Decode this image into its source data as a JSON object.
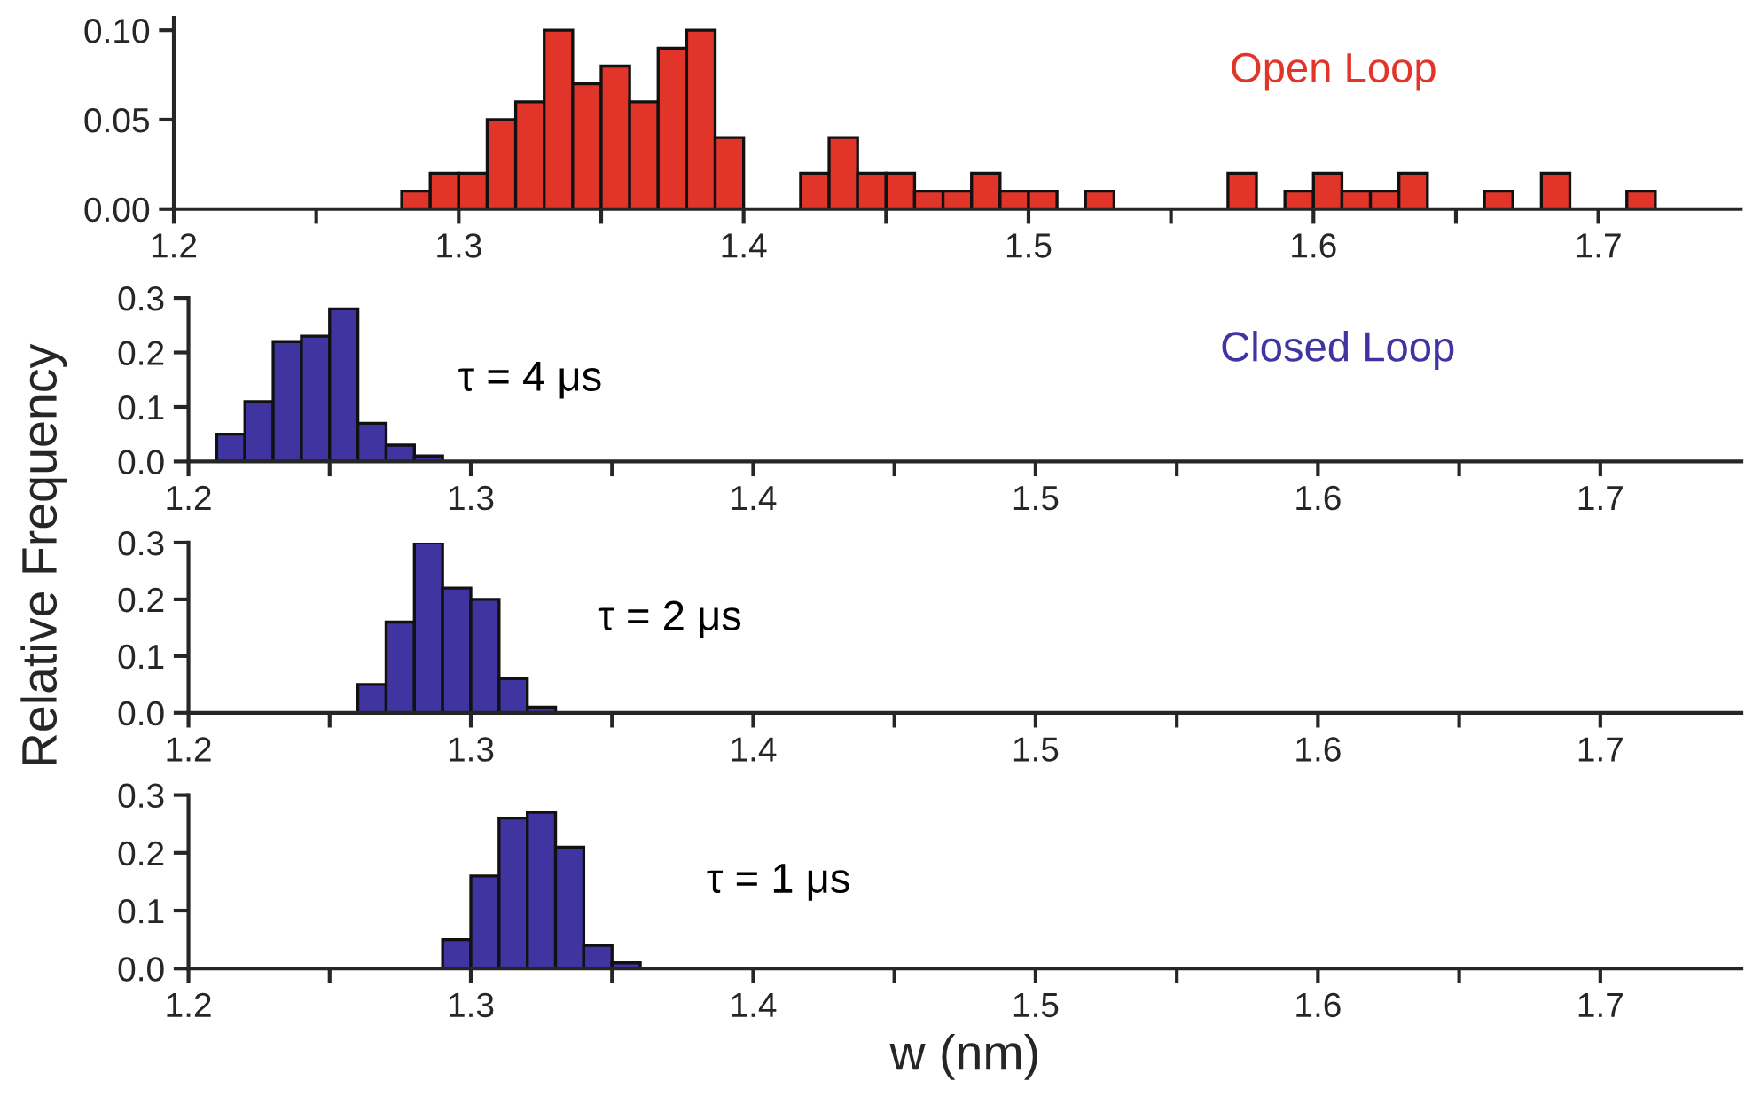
{
  "chart_data": [
    {
      "type": "histogram",
      "ylabel": "Relative Frequency",
      "color": "#e2352a",
      "bins": [
        1.28,
        1.29,
        1.3,
        1.31,
        1.32,
        1.33,
        1.34,
        1.35,
        1.36,
        1.37,
        1.38,
        1.39,
        1.4,
        1.41,
        1.42,
        1.43,
        1.44,
        1.45,
        1.46,
        1.47,
        1.48,
        1.49,
        1.5,
        1.51,
        1.52,
        1.53,
        1.54,
        1.55,
        1.56,
        1.57,
        1.58,
        1.59,
        1.6,
        1.61,
        1.62,
        1.63,
        1.64,
        1.65,
        1.66,
        1.67,
        1.68,
        1.69,
        1.7,
        1.71,
        1.72
      ],
      "values": [
        0.01,
        0.02,
        0.02,
        0.05,
        0.06,
        0.1,
        0.07,
        0.08,
        0.06,
        0.09,
        0.1,
        0.04,
        0,
        0,
        0.02,
        0.04,
        0.02,
        0.02,
        0.01,
        0.01,
        0.02,
        0.01,
        0.01,
        0,
        0.01,
        0,
        0,
        0,
        0,
        0.02,
        0,
        0.01,
        0.02,
        0.01,
        0.01,
        0.02,
        0,
        0,
        0.01,
        0,
        0.02,
        0,
        0,
        0.01
      ],
      "xlim": [
        1.2,
        1.75
      ],
      "xticks": [
        1.2,
        {
          "value": 1.25,
          "label": null
        },
        1.3,
        {
          "value": 1.35,
          "label": null
        },
        1.4,
        {
          "value": 1.45,
          "label": null
        },
        1.5,
        {
          "value": 1.55,
          "label": null
        },
        1.6,
        {
          "value": 1.65,
          "label": null
        },
        1.7
      ],
      "ylim": [
        0,
        0.107
      ],
      "yticks": [
        {
          "value": 0,
          "label": "0.00"
        },
        {
          "value": 0.05,
          "label": "0.05"
        },
        {
          "value": 0.1,
          "label": "0.10"
        }
      ],
      "annotations": [
        "Open Loop"
      ]
    },
    {
      "type": "histogram",
      "color": "#3f34a0",
      "bins": [
        1.21,
        1.22,
        1.23,
        1.24,
        1.25,
        1.26,
        1.27,
        1.28,
        1.29
      ],
      "values": [
        0.05,
        0.11,
        0.22,
        0.23,
        0.28,
        0.07,
        0.03,
        0.01
      ],
      "xlim": [
        1.2,
        1.75
      ],
      "xticks": [
        1.2,
        {
          "value": 1.25,
          "label": null
        },
        1.3,
        {
          "value": 1.35,
          "label": null
        },
        1.4,
        {
          "value": 1.45,
          "label": null
        },
        1.5,
        {
          "value": 1.55,
          "label": null
        },
        1.6,
        {
          "value": 1.65,
          "label": null
        },
        1.7
      ],
      "ylim": [
        0,
        0.3
      ],
      "yticks": [
        {
          "value": 0,
          "label": "0.0"
        },
        0.1,
        0.2,
        0.3
      ],
      "annotations": [
        "Closed Loop",
        "τ = 4 μs"
      ]
    },
    {
      "type": "histogram",
      "color": "#3f34a0",
      "bins": [
        1.26,
        1.27,
        1.28,
        1.29,
        1.3,
        1.31,
        1.32,
        1.33
      ],
      "values": [
        0.05,
        0.16,
        0.3,
        0.22,
        0.2,
        0.06,
        0.01
      ],
      "xlim": [
        1.2,
        1.75
      ],
      "xticks": [
        1.2,
        {
          "value": 1.25,
          "label": null
        },
        1.3,
        {
          "value": 1.35,
          "label": null
        },
        1.4,
        {
          "value": 1.45,
          "label": null
        },
        1.5,
        {
          "value": 1.55,
          "label": null
        },
        1.6,
        {
          "value": 1.65,
          "label": null
        },
        1.7
      ],
      "ylim": [
        0,
        0.3
      ],
      "yticks": [
        {
          "value": 0,
          "label": "0.0"
        },
        0.1,
        0.2,
        0.3
      ],
      "annotations": [
        "τ = 2 μs"
      ]
    },
    {
      "type": "histogram",
      "color": "#3f34a0",
      "xlabel": "w (nm)",
      "bins": [
        1.29,
        1.3,
        1.31,
        1.32,
        1.33,
        1.34,
        1.35,
        1.36
      ],
      "values": [
        0.05,
        0.16,
        0.26,
        0.27,
        0.21,
        0.04,
        0.01
      ],
      "xlim": [
        1.2,
        1.75
      ],
      "xticks": [
        1.2,
        {
          "value": 1.25,
          "label": null
        },
        1.3,
        {
          "value": 1.35,
          "label": null
        },
        1.4,
        {
          "value": 1.45,
          "label": null
        },
        1.5,
        {
          "value": 1.55,
          "label": null
        },
        1.6,
        {
          "value": 1.65,
          "label": null
        },
        1.7
      ],
      "ylim": [
        0,
        0.3
      ],
      "yticks": [
        {
          "value": 0,
          "label": "0.0"
        },
        0.1,
        0.2,
        0.3
      ],
      "annotations": [
        "τ = 1 μs"
      ]
    }
  ]
}
